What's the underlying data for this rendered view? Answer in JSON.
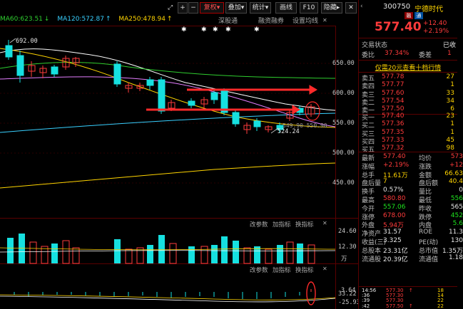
{
  "toolbar": {
    "plus": "+",
    "minus": "−",
    "fq": "复权",
    "overlay": "叠加",
    "stat": "统计",
    "draw": "画线",
    "f10": "F10",
    "hide": "隐藏"
  },
  "ma": {
    "ma60": "MA60:623.51",
    "ma120": "MA120:572.87",
    "ma250": "MA250:478.94"
  },
  "tabs": {
    "a": "深股通",
    "b": "融资融券",
    "c": "设置均线"
  },
  "price_axis": [
    "650.00",
    "600.00",
    "550.00",
    "500.00",
    "450.00"
  ],
  "annotations": {
    "high": "692.00",
    "low": "524.24",
    "range": "549.90-550.90"
  },
  "vol_bar": {
    "a": "改参数",
    "b": "加指标",
    "c": "换指标"
  },
  "vol_axis": [
    "24.60",
    "12.30",
    "万"
  ],
  "macd_bar": {
    "a": "改参数",
    "b": "加指标",
    "c": "换指标"
  },
  "macd_axis": [
    "33.22",
    "3.64",
    "-25.93"
  ],
  "quote": {
    "code": "300750",
    "name": "宁德时代",
    "badge1": "融",
    "badge2": "通",
    "price": "577.40",
    "change": "+12.40",
    "pct": "+2.19%",
    "status_label": "交易状态",
    "status_val": "已收",
    "wb_label": "委比",
    "wb_val": "37.34%",
    "wc_label": "委差",
    "wc_val": "1",
    "promo": "仅需20元查看十档行情",
    "sell": [
      {
        "label": "卖五",
        "price": "577.78",
        "vol": "27"
      },
      {
        "label": "卖四",
        "price": "577.77",
        "vol": "1"
      },
      {
        "label": "卖三",
        "price": "577.60",
        "vol": "33"
      },
      {
        "label": "卖二",
        "price": "577.54",
        "vol": "34"
      },
      {
        "label": "卖一",
        "price": "577.50",
        "vol": "6"
      }
    ],
    "buy": [
      {
        "label": "买一",
        "price": "577.40",
        "vol": "23"
      },
      {
        "label": "买二",
        "price": "577.36",
        "vol": "1"
      },
      {
        "label": "买三",
        "price": "577.35",
        "vol": "1"
      },
      {
        "label": "买四",
        "price": "577.33",
        "vol": "45"
      },
      {
        "label": "买五",
        "price": "577.32",
        "vol": "98"
      }
    ],
    "stats": [
      {
        "l1": "最新",
        "v1": "577.40",
        "c1": "red",
        "l2": "均价",
        "v2": "573",
        "c2": "red"
      },
      {
        "l1": "涨幅",
        "v1": "+2.19%",
        "c1": "red",
        "l2": "涨跌",
        "v2": "+12",
        "c2": "red"
      },
      {
        "l1": "总手",
        "v1": "11.61万",
        "c1": "yellow",
        "l2": "金额",
        "v2": "66.63",
        "c2": "yellow"
      },
      {
        "l1": "盘后量",
        "v1": "7",
        "c1": "yellow",
        "l2": "盘后额",
        "v2": "40.4",
        "c2": "yellow"
      },
      {
        "l1": "换手",
        "v1": "0.57%",
        "c1": "white",
        "l2": "量比",
        "v2": "0",
        "c2": "white"
      },
      {
        "l1": "最高",
        "v1": "580.80",
        "c1": "red",
        "l2": "最低",
        "v2": "556",
        "c2": "green"
      },
      {
        "l1": "今开",
        "v1": "557.06",
        "c1": "green",
        "l2": "昨收",
        "v2": "565",
        "c2": "white"
      },
      {
        "l1": "涨停",
        "v1": "678.00",
        "c1": "red",
        "l2": "跌停",
        "v2": "452",
        "c2": "green"
      },
      {
        "l1": "外盘",
        "v1": "5.94万",
        "c1": "red",
        "l2": "内盘",
        "v2": "5.6",
        "c2": "green"
      },
      {
        "l1": "净资产",
        "v1": "31.57",
        "c1": "white",
        "l2": "ROE",
        "v2": "11.3",
        "c2": "white"
      },
      {
        "l1": "收益(三)",
        "v1": "3.325",
        "c1": "white",
        "l2": "PE(动)",
        "v2": "130",
        "c2": "white"
      },
      {
        "l1": "总股本",
        "v1": "23.31亿",
        "c1": "white",
        "l2": "总市值",
        "v2": "1.35万",
        "c2": "white"
      },
      {
        "l1": "流通股",
        "v1": "20.39亿",
        "c1": "white",
        "l2": "流通值",
        "v2": "1.18",
        "c2": "white"
      }
    ],
    "ticks": [
      {
        "time": "14:56",
        "price": "577.30",
        "vol": "18",
        "dir": "↑"
      },
      {
        "time": ":36",
        "price": "577.30",
        "vol": "14",
        "dir": ""
      },
      {
        "time": ":39",
        "price": "577.30",
        "vol": "22",
        "dir": ""
      },
      {
        "time": ":42",
        "price": "577.50",
        "vol": "22",
        "dir": "↑"
      }
    ]
  },
  "colors": {
    "up": "#ff3b3b",
    "down": "#16e0e0",
    "ma_short": "#ffffff",
    "ma_mid": "#ffd400",
    "ma_long": "#2fcf2f",
    "arrow": "#ff2a2a"
  }
}
